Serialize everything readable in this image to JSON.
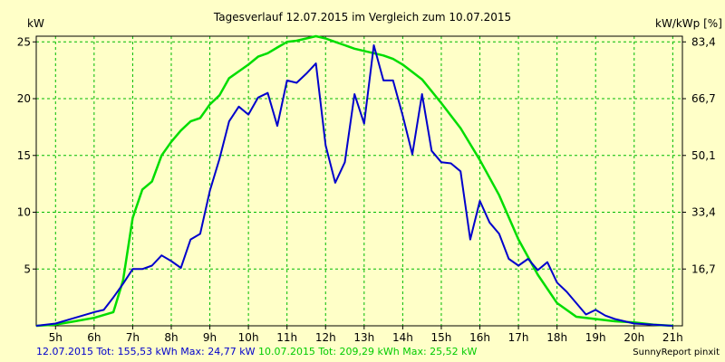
{
  "chart_data": {
    "type": "line",
    "title": "Tagesverlauf 12.07.2015 im Vergleich zum 10.07.2015",
    "ylabel_left": "kW",
    "ylabel_right": "kW/kWp [%]",
    "xlim": [
      4.5,
      21.25
    ],
    "ylim": [
      0,
      25.5
    ],
    "x_ticks": [
      5,
      6,
      7,
      8,
      9,
      10,
      11,
      12,
      13,
      14,
      15,
      16,
      17,
      18,
      19,
      20,
      21
    ],
    "x_tick_labels": [
      "5h",
      "6h",
      "7h",
      "8h",
      "9h",
      "10h",
      "11h",
      "12h",
      "13h",
      "14h",
      "15h",
      "16h",
      "17h",
      "18h",
      "19h",
      "20h",
      "21h"
    ],
    "y_ticks": [
      5,
      10,
      15,
      20,
      25
    ],
    "y_tick_labels": [
      "5",
      "10",
      "15",
      "20",
      "25"
    ],
    "y2_ticks": [
      5,
      10,
      15,
      20,
      25
    ],
    "y2_tick_labels": [
      "16,7",
      "33,4",
      "50,1",
      "66,7",
      "83,4"
    ],
    "grid": true,
    "series": [
      {
        "name": "12.07.2015",
        "color": "#0000cc",
        "x": [
          4.5,
          5.0,
          5.5,
          6.0,
          6.25,
          6.5,
          6.75,
          7.0,
          7.25,
          7.5,
          7.75,
          8.0,
          8.25,
          8.5,
          8.75,
          9.0,
          9.25,
          9.5,
          9.75,
          10.0,
          10.25,
          10.5,
          10.75,
          11.0,
          11.25,
          11.5,
          11.75,
          12.0,
          12.25,
          12.5,
          12.75,
          13.0,
          13.25,
          13.5,
          13.75,
          14.0,
          14.25,
          14.5,
          14.75,
          15.0,
          15.25,
          15.5,
          15.75,
          16.0,
          16.25,
          16.5,
          16.75,
          17.0,
          17.25,
          17.5,
          17.75,
          18.0,
          18.25,
          18.5,
          18.75,
          19.0,
          19.25,
          19.5,
          19.75,
          20.0,
          20.5,
          21.0
        ],
        "y": [
          0,
          0.2,
          0.7,
          1.2,
          1.4,
          2.5,
          3.7,
          5.0,
          5.0,
          5.3,
          6.2,
          5.7,
          5.1,
          7.6,
          8.1,
          11.9,
          14.7,
          18.0,
          19.3,
          18.6,
          20.1,
          20.5,
          17.6,
          21.6,
          21.4,
          22.2,
          23.1,
          15.9,
          12.6,
          14.4,
          20.4,
          17.8,
          24.7,
          21.6,
          21.6,
          18.5,
          15.1,
          20.4,
          15.4,
          14.4,
          14.3,
          13.6,
          7.6,
          11.0,
          9.1,
          8.1,
          5.9,
          5.3,
          5.9,
          4.9,
          5.6,
          3.8,
          3.0,
          2.0,
          1.0,
          1.4,
          0.9,
          0.6,
          0.4,
          0.2,
          0.1,
          0
        ]
      },
      {
        "name": "10.07.2015",
        "color": "#00dd00",
        "x": [
          4.5,
          5.0,
          5.5,
          6.0,
          6.5,
          6.75,
          7.0,
          7.25,
          7.5,
          7.75,
          8.0,
          8.25,
          8.5,
          8.75,
          9.0,
          9.25,
          9.5,
          9.75,
          10.0,
          10.25,
          10.5,
          10.75,
          11.0,
          11.25,
          11.5,
          11.75,
          12.0,
          12.25,
          12.5,
          12.75,
          13.0,
          13.25,
          13.5,
          13.75,
          14.0,
          14.5,
          15.0,
          15.5,
          16.0,
          16.5,
          17.0,
          17.5,
          18.0,
          18.5,
          19.0,
          19.5,
          20.0,
          20.5,
          21.0
        ],
        "y": [
          0,
          0.1,
          0.4,
          0.7,
          1.2,
          4.0,
          9.5,
          12.0,
          12.7,
          15.0,
          16.2,
          17.2,
          18.0,
          18.3,
          19.5,
          20.3,
          21.8,
          22.4,
          23.0,
          23.7,
          24.0,
          24.5,
          25.0,
          25.1,
          25.3,
          25.5,
          25.3,
          25.0,
          24.7,
          24.4,
          24.2,
          24.0,
          23.8,
          23.5,
          23.0,
          21.7,
          19.6,
          17.4,
          14.6,
          11.5,
          7.6,
          4.5,
          2.0,
          0.8,
          0.6,
          0.4,
          0.3,
          0.1,
          0
        ]
      }
    ]
  },
  "footer": {
    "series1_text": "12.07.2015 Tot: 155,53 kWh Max: 24,77 kW",
    "series2_text": "10.07.2015 Tot: 209,29 kWh Max: 25,52 kW",
    "series1_color": "#0000cc",
    "series2_color": "#00cc00"
  },
  "credit": "SunnyReport pinxit"
}
